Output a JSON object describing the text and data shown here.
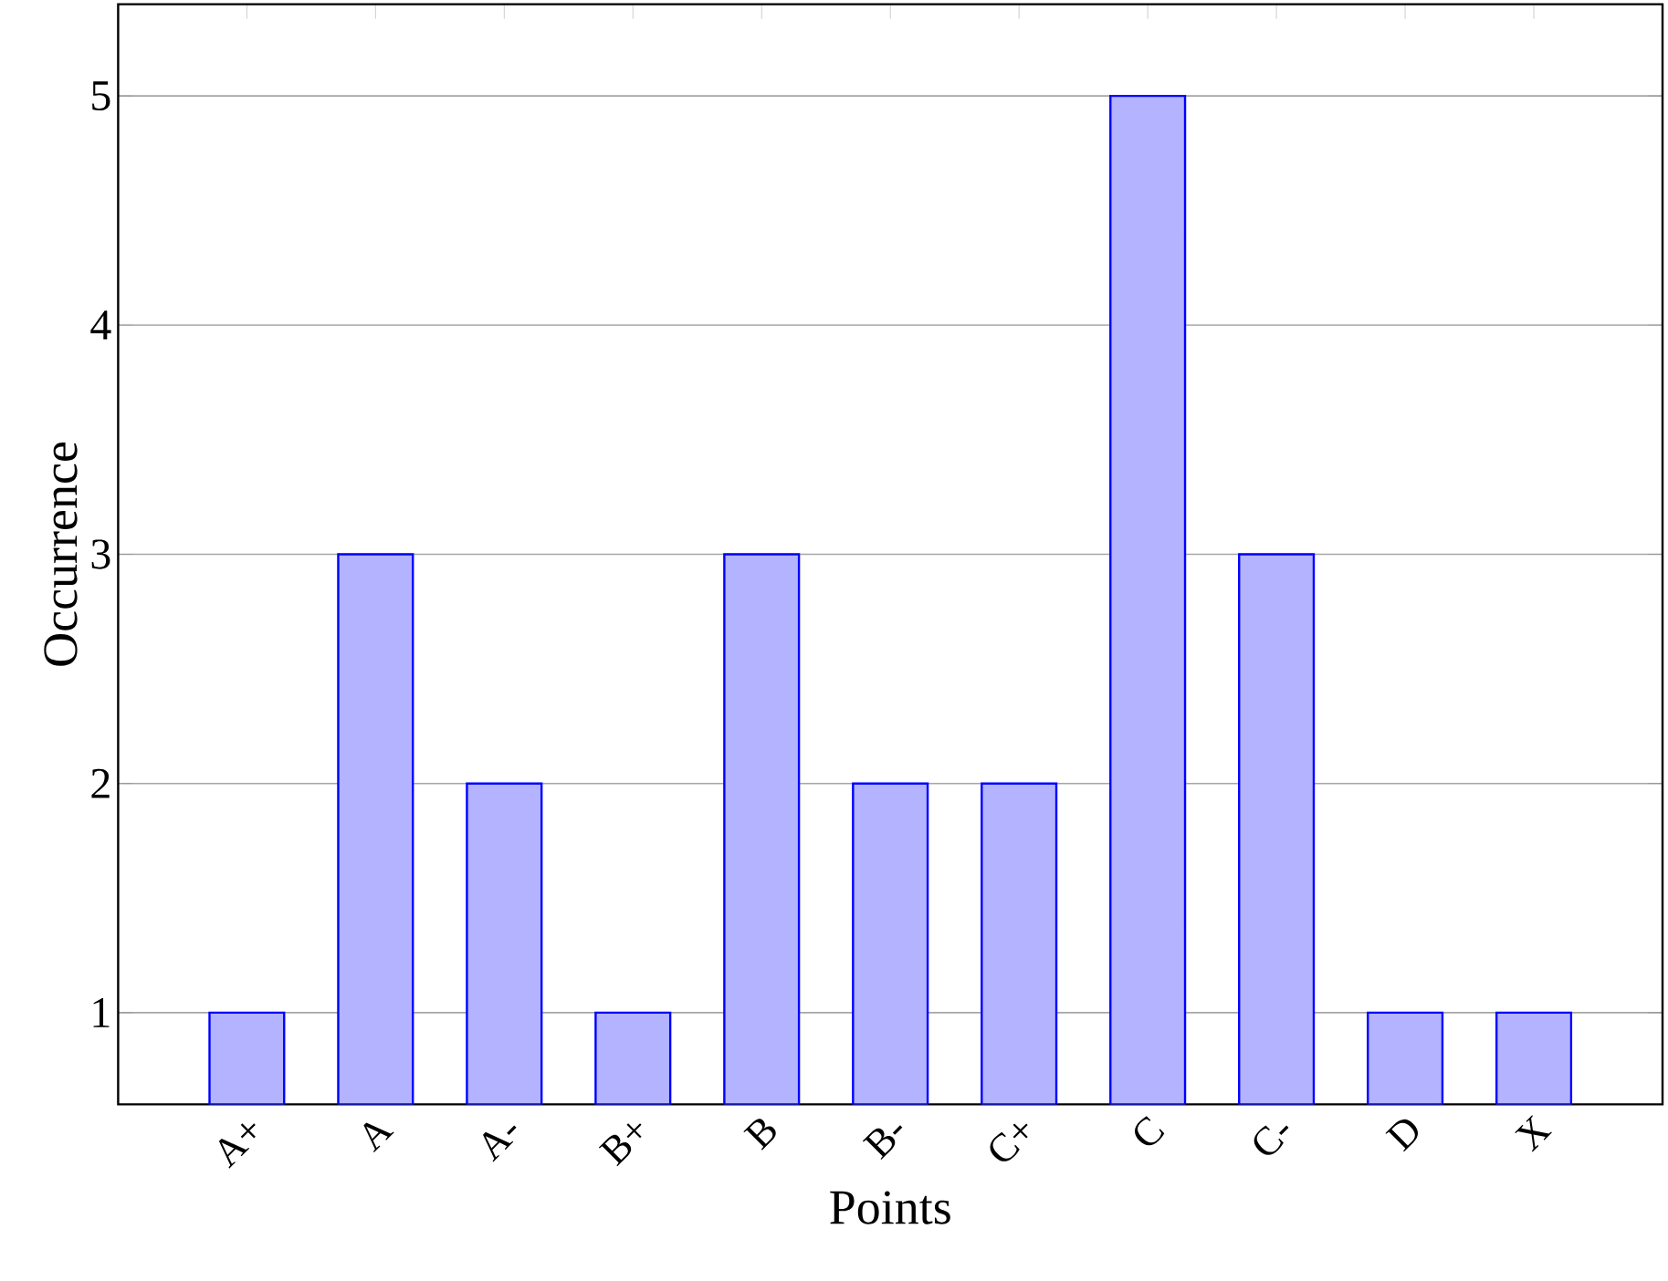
{
  "chart_data": {
    "type": "bar",
    "xlabel": "Points",
    "ylabel": "Occurrence",
    "categories": [
      "A+",
      "A",
      "A-",
      "B+",
      "B",
      "B-",
      "C+",
      "C",
      "C-",
      "D",
      "X"
    ],
    "values": [
      1,
      3,
      2,
      1,
      3,
      2,
      2,
      5,
      3,
      1,
      1
    ],
    "color": "#b3b3ff",
    "ylim": [
      0.6,
      5.4
    ],
    "yticks": [
      1,
      2,
      3,
      4,
      5
    ],
    "grid": "y"
  }
}
